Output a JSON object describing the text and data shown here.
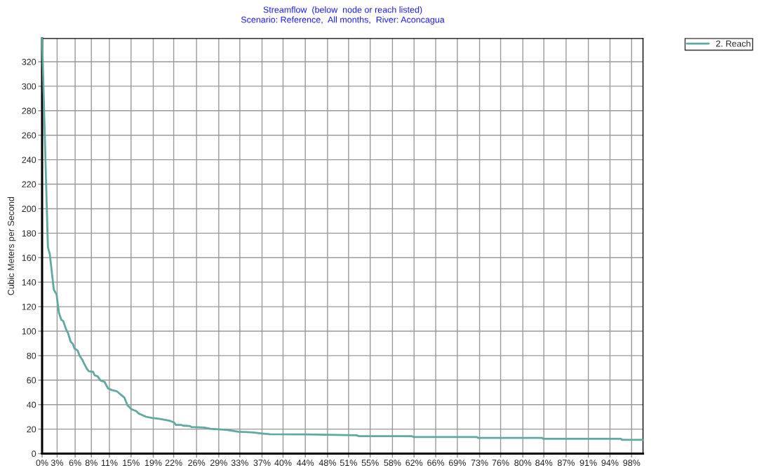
{
  "chart_data": {
    "type": "line",
    "title": "Streamflow  (below  node or reach listed)",
    "subtitle": "Scenario: Reference,  All months,  River: Aconcagua",
    "ylabel": "Cubic Meters per Second",
    "series": [
      {
        "name": "2. Reach",
        "color": "#5fa9a2",
        "x": [
          0,
          0.9,
          0.97,
          1.28,
          1.95,
          2.41,
          2.8,
          3.19,
          3.5,
          3.97,
          4.35,
          4.75,
          5.13,
          5.37,
          5.91,
          6.22,
          6.69,
          7.0,
          7.47,
          7.78,
          8.48,
          8.75,
          9.26,
          9.72,
          10.39,
          10.97,
          11.67,
          12.45,
          13.23,
          13.69,
          14.2,
          14.86,
          15.64,
          16.02,
          16.72,
          17.3,
          18.28,
          19.64,
          21.2,
          21.97,
          22.25,
          23.14,
          23.5,
          24.5,
          24.9,
          27.0,
          28.0,
          30.7,
          32.7,
          34.8,
          36.6,
          37.9,
          44.0,
          52.3,
          52.7,
          61.5,
          61.8,
          72.3,
          72.6,
          83.2,
          83.4,
          96.3,
          96.5,
          100
        ],
        "values": [
          339,
          180,
          168.6,
          163,
          133.8,
          130,
          115,
          109.3,
          108.4,
          101.8,
          98,
          91.4,
          89.5,
          86.1,
          84.2,
          80.1,
          76.7,
          73.5,
          69.1,
          67.3,
          66.9,
          63.9,
          63.1,
          59.7,
          58.6,
          53.3,
          51.8,
          50.9,
          47.6,
          45.8,
          39.6,
          36.3,
          34.8,
          32.9,
          31.4,
          30.1,
          29.2,
          28.3,
          26.9,
          25.4,
          23.5,
          23.5,
          22.8,
          22.6,
          21.7,
          21.3,
          20.3,
          19.4,
          17.9,
          17.4,
          16.4,
          15.8,
          15.7,
          15.0,
          14.3,
          14.3,
          13.6,
          13.6,
          12.8,
          12.8,
          12.1,
          12.1,
          11.3,
          11.3
        ]
      }
    ],
    "xlim": [
      0,
      100
    ],
    "xticks": [
      {
        "value": 0,
        "label": "0%"
      },
      {
        "value": 2.5,
        "label": "3%"
      },
      {
        "value": 5.5,
        "label": "6%"
      },
      {
        "value": 8.2,
        "label": "8%"
      },
      {
        "value": 11.2,
        "label": "11%"
      },
      {
        "value": 14.8,
        "label": "15%"
      },
      {
        "value": 18.5,
        "label": "19%"
      },
      {
        "value": 21.9,
        "label": "22%"
      },
      {
        "value": 25.7,
        "label": "26%"
      },
      {
        "value": 29.4,
        "label": "29%"
      },
      {
        "value": 32.9,
        "label": "33%"
      },
      {
        "value": 36.6,
        "label": "37%"
      },
      {
        "value": 40.1,
        "label": "40%"
      },
      {
        "value": 43.8,
        "label": "44%"
      },
      {
        "value": 47.5,
        "label": "48%"
      },
      {
        "value": 51.0,
        "label": "51%"
      },
      {
        "value": 54.6,
        "label": "55%"
      },
      {
        "value": 58.3,
        "label": "58%"
      },
      {
        "value": 61.9,
        "label": "62%"
      },
      {
        "value": 65.5,
        "label": "66%"
      },
      {
        "value": 69.1,
        "label": "69%"
      },
      {
        "value": 72.8,
        "label": "73%"
      },
      {
        "value": 76.3,
        "label": "76%"
      },
      {
        "value": 80.0,
        "label": "80%"
      },
      {
        "value": 83.5,
        "label": "84%"
      },
      {
        "value": 87.2,
        "label": "87%"
      },
      {
        "value": 90.9,
        "label": "91%"
      },
      {
        "value": 94.5,
        "label": "94%"
      },
      {
        "value": 98.1,
        "label": "98%"
      }
    ],
    "ylim": [
      0,
      339
    ],
    "yticks": [
      0,
      20,
      40,
      60,
      80,
      100,
      120,
      140,
      160,
      180,
      200,
      220,
      240,
      260,
      280,
      300,
      320
    ],
    "grid": true,
    "legend": "top right",
    "marker": "none",
    "line_style": "solid"
  }
}
